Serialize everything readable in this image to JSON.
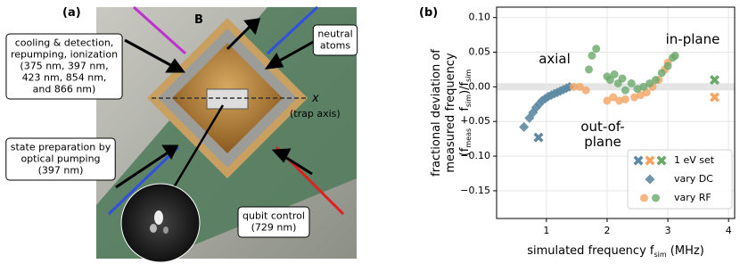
{
  "panel_a": {
    "label": "(a)",
    "field_label": "B",
    "axis_label": "x",
    "axis_note": "(trap axis)",
    "boxes": [
      {
        "lines": [
          "cooling & detection,",
          "repumping, ionization",
          "(375 nm, 397 nm,",
          "423 nm, 854 nm,",
          "and 866 nm)"
        ]
      },
      {
        "lines": [
          "neutral",
          "atoms"
        ]
      },
      {
        "lines": [
          "state preparation by",
          "optical pumping",
          "(397 nm)"
        ]
      },
      {
        "lines": [
          "qubit control",
          "(729 nm)"
        ]
      }
    ]
  },
  "chart_data": {
    "type": "scatter",
    "panel_label": "(b)",
    "xlabel": "simulated frequency f_sim (MHz)",
    "ylabel": [
      "fractional deviation of",
      "measured frequency",
      "(f_meas − f_sim)/f_sim"
    ],
    "xlim": [
      0.18,
      4.1
    ],
    "ylim": [
      -0.19,
      0.115
    ],
    "xticks": [
      1,
      2,
      3,
      4
    ],
    "yticks": [
      {
        "value": -0.15,
        "label": "−0.15"
      },
      {
        "value": -0.1,
        "label": "−0.10"
      },
      {
        "value": -0.05,
        "label": "−0.05"
      },
      {
        "value": 0,
        "label": "0.00"
      },
      0.05,
      {
        "value": 0.1,
        "label": "0.10"
      }
    ],
    "grid": true,
    "legend": "lower right",
    "annotations": [
      {
        "lines": [
          "axial"
        ],
        "color": "#2f6b8a"
      },
      {
        "lines": [
          "in-plane"
        ],
        "color": "#3f8f3f"
      },
      {
        "lines": [
          "out-of-",
          "plane"
        ],
        "color": "#f0913a"
      }
    ],
    "series": [
      {
        "name": "1 eV set",
        "marker": "x",
        "parts": [
          {
            "color": "#5d8aa3",
            "x": [
              0.87
            ],
            "values": [
              -0.073
            ]
          },
          {
            "color": "#f4a462",
            "x": [
              3.77
            ],
            "values": [
              -0.015
            ]
          },
          {
            "color": "#6aa86a",
            "x": [
              3.77
            ],
            "values": [
              0.01
            ]
          }
        ]
      },
      {
        "name": "vary DC",
        "marker": "diamond",
        "parts": [
          {
            "color": "#5d8aa3",
            "x": [
              0.63,
              0.72,
              0.78,
              0.83,
              0.88,
              0.93,
              0.98,
              1.03,
              1.08,
              1.13,
              1.18,
              1.23,
              1.28,
              1.33,
              1.38
            ],
            "values": [
              -0.058,
              -0.045,
              -0.037,
              -0.03,
              -0.025,
              -0.02,
              -0.017,
              -0.014,
              -0.012,
              -0.01,
              -0.008,
              -0.006,
              -0.004,
              -0.002,
              0.0
            ]
          }
        ]
      },
      {
        "name": "vary RF",
        "marker": "circle",
        "parts": [
          {
            "color": "#f4a462",
            "x": [
              1.45,
              1.55,
              1.65,
              2.0,
              2.1,
              2.2,
              2.3,
              2.45,
              2.55,
              2.65,
              2.75,
              2.85,
              2.95,
              3.0
            ],
            "values": [
              0.0,
              0.0,
              -0.005,
              -0.02,
              -0.015,
              -0.02,
              -0.018,
              -0.015,
              -0.012,
              -0.008,
              0.0,
              0.01,
              0.025,
              0.035
            ]
          },
          {
            "color": "#6aa86a",
            "x": [
              1.7,
              1.75,
              1.82,
              2.0,
              2.05,
              2.12,
              2.18,
              2.25,
              2.3,
              2.4,
              2.5,
              2.6,
              2.7,
              2.8,
              2.9,
              3.0,
              3.08,
              3.12
            ],
            "values": [
              0.025,
              0.045,
              0.055,
              0.015,
              0.01,
              0.018,
              0.005,
              0.012,
              -0.005,
              0.005,
              -0.003,
              0.0,
              0.005,
              0.01,
              0.02,
              0.03,
              0.042,
              0.045
            ]
          }
        ]
      }
    ]
  }
}
